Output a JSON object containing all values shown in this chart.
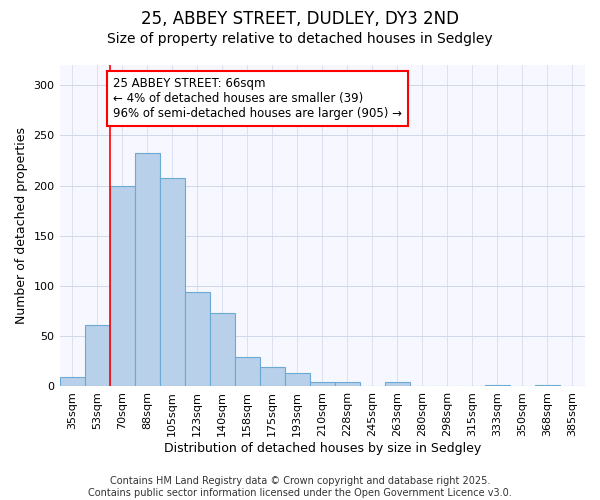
{
  "title1": "25, ABBEY STREET, DUDLEY, DY3 2ND",
  "title2": "Size of property relative to detached houses in Sedgley",
  "xlabel": "Distribution of detached houses by size in Sedgley",
  "ylabel": "Number of detached properties",
  "categories": [
    "35sqm",
    "53sqm",
    "70sqm",
    "88sqm",
    "105sqm",
    "123sqm",
    "140sqm",
    "158sqm",
    "175sqm",
    "193sqm",
    "210sqm",
    "228sqm",
    "245sqm",
    "263sqm",
    "280sqm",
    "298sqm",
    "315sqm",
    "333sqm",
    "350sqm",
    "368sqm",
    "385sqm"
  ],
  "values": [
    9,
    61,
    200,
    232,
    208,
    94,
    73,
    29,
    19,
    13,
    4,
    4,
    0,
    4,
    0,
    0,
    0,
    1,
    0,
    1,
    0
  ],
  "bar_color": "#b8d0ea",
  "bar_edge_color": "#6aaad4",
  "annotation_text": "25 ABBEY STREET: 66sqm\n← 4% of detached houses are smaller (39)\n96% of semi-detached houses are larger (905) →",
  "annotation_box_color": "white",
  "annotation_box_edge_color": "red",
  "vline_color": "red",
  "vline_x_index": 2,
  "ylim": [
    0,
    320
  ],
  "yticks": [
    0,
    50,
    100,
    150,
    200,
    250,
    300
  ],
  "footnote": "Contains HM Land Registry data © Crown copyright and database right 2025.\nContains public sector information licensed under the Open Government Licence v3.0.",
  "bg_color": "#ffffff",
  "plot_bg_color": "#f7f8ff",
  "grid_color": "#d0d8e8",
  "title_fontsize": 12,
  "subtitle_fontsize": 10,
  "axis_label_fontsize": 9,
  "tick_fontsize": 8,
  "annotation_fontsize": 8.5,
  "footnote_fontsize": 7
}
